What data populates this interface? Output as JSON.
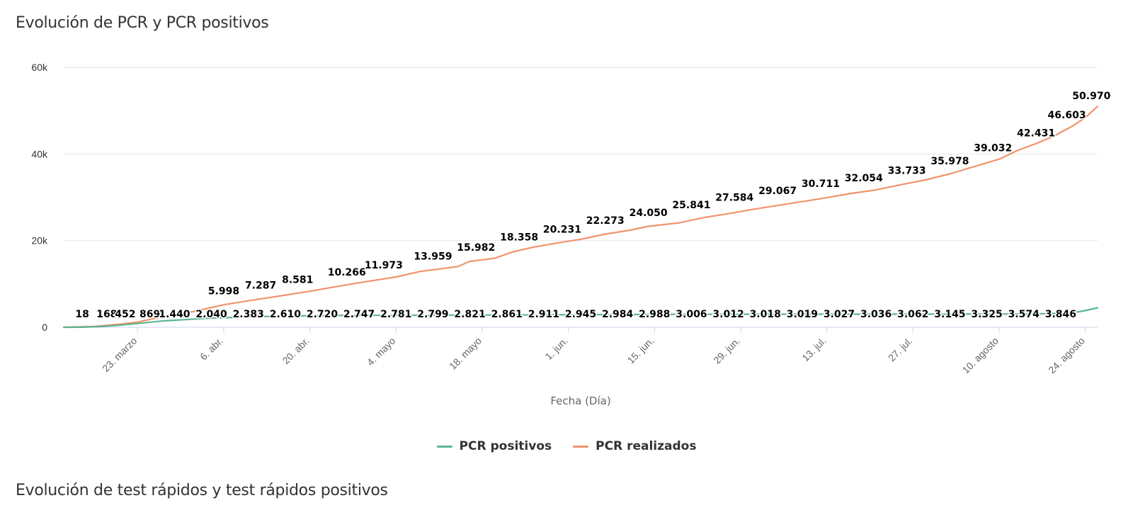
{
  "page": {
    "title": "Evolución de PCR y PCR positivos",
    "next_title": "Evolución de test rápidos y test rápidos positivos"
  },
  "chart_data": {
    "type": "line",
    "title": "Evolución de PCR y PCR positivos",
    "xlabel": "Fecha (Día)",
    "ylabel": "",
    "ylim": [
      0,
      60000
    ],
    "yticks": [
      {
        "value": 0,
        "label": "0"
      },
      {
        "value": 20000,
        "label": "20k"
      },
      {
        "value": 40000,
        "label": "40k"
      },
      {
        "value": 60000,
        "label": "60k"
      }
    ],
    "xlim": [
      0,
      168
    ],
    "xticks": [
      {
        "day": 12,
        "label": "23. marzo"
      },
      {
        "day": 26,
        "label": "6. abr."
      },
      {
        "day": 40,
        "label": "20. abr."
      },
      {
        "day": 54,
        "label": "4. mayo"
      },
      {
        "day": 68,
        "label": "18. mayo"
      },
      {
        "day": 82,
        "label": "1. jun."
      },
      {
        "day": 96,
        "label": "15. jun."
      },
      {
        "day": 110,
        "label": "29. jun."
      },
      {
        "day": 124,
        "label": "13. jul."
      },
      {
        "day": 138,
        "label": "27. jul."
      },
      {
        "day": 152,
        "label": "10. agosto"
      },
      {
        "day": 166,
        "label": "24. agosto"
      }
    ],
    "legend_position": "bottom-center",
    "series": [
      {
        "name": "PCR positivos",
        "color": "#5bb595",
        "points": [
          {
            "day": 0,
            "value": 0
          },
          {
            "day": 3,
            "value": 18
          },
          {
            "day": 6,
            "value": 168
          },
          {
            "day": 9,
            "value": 452
          },
          {
            "day": 12,
            "value": 869
          },
          {
            "day": 16,
            "value": 1440
          },
          {
            "day": 23,
            "value": 2040
          },
          {
            "day": 30,
            "value": 2383
          },
          {
            "day": 37,
            "value": 2610
          },
          {
            "day": 44,
            "value": 2720
          },
          {
            "day": 51,
            "value": 2747
          },
          {
            "day": 58,
            "value": 2781
          },
          {
            "day": 65,
            "value": 2799
          },
          {
            "day": 72,
            "value": 2821
          },
          {
            "day": 79,
            "value": 2861
          },
          {
            "day": 86,
            "value": 2911
          },
          {
            "day": 93,
            "value": 2945
          },
          {
            "day": 100,
            "value": 2984
          },
          {
            "day": 107,
            "value": 2988
          },
          {
            "day": 114,
            "value": 3006
          },
          {
            "day": 121,
            "value": 3012
          },
          {
            "day": 128,
            "value": 3018
          },
          {
            "day": 135,
            "value": 3019
          },
          {
            "day": 142,
            "value": 3027
          },
          {
            "day": 149,
            "value": 3036
          },
          {
            "day": 156,
            "value": 3062
          },
          {
            "day": 160,
            "value": 3145
          },
          {
            "day": 163,
            "value": 3325
          },
          {
            "day": 165,
            "value": 3574
          },
          {
            "day": 166,
            "value": 3846
          },
          {
            "day": 168,
            "value": 4500
          }
        ],
        "labels": [
          {
            "day": 3,
            "value": 18,
            "text": "18"
          },
          {
            "day": 7,
            "value": 168,
            "text": "168"
          },
          {
            "day": 10,
            "value": 452,
            "text": "452"
          },
          {
            "day": 14,
            "value": 869,
            "text": "869"
          },
          {
            "day": 18,
            "value": 1440,
            "text": "1.440"
          },
          {
            "day": 24,
            "value": 2040,
            "text": "2.040"
          },
          {
            "day": 30,
            "value": 2383,
            "text": "2.383"
          },
          {
            "day": 36,
            "value": 2610,
            "text": "2.610"
          },
          {
            "day": 42,
            "value": 2720,
            "text": "2.720"
          },
          {
            "day": 48,
            "value": 2747,
            "text": "2.747"
          },
          {
            "day": 54,
            "value": 2781,
            "text": "2.781"
          },
          {
            "day": 60,
            "value": 2799,
            "text": "2.799"
          },
          {
            "day": 66,
            "value": 2821,
            "text": "2.821"
          },
          {
            "day": 72,
            "value": 2861,
            "text": "2.861"
          },
          {
            "day": 78,
            "value": 2911,
            "text": "2.911"
          },
          {
            "day": 84,
            "value": 2945,
            "text": "2.945"
          },
          {
            "day": 90,
            "value": 2984,
            "text": "2.984"
          },
          {
            "day": 96,
            "value": 2988,
            "text": "2.988"
          },
          {
            "day": 102,
            "value": 3006,
            "text": "3.006"
          },
          {
            "day": 108,
            "value": 3012,
            "text": "3.012"
          },
          {
            "day": 114,
            "value": 3018,
            "text": "3.018"
          },
          {
            "day": 120,
            "value": 3019,
            "text": "3.019"
          },
          {
            "day": 126,
            "value": 3027,
            "text": "3.027"
          },
          {
            "day": 132,
            "value": 3036,
            "text": "3.036"
          },
          {
            "day": 138,
            "value": 3062,
            "text": "3.062"
          },
          {
            "day": 144,
            "value": 3145,
            "text": "3.145"
          },
          {
            "day": 150,
            "value": 3325,
            "text": "3.325"
          },
          {
            "day": 156,
            "value": 3574,
            "text": "3.574"
          },
          {
            "day": 162,
            "value": 3846,
            "text": "3.846"
          }
        ]
      },
      {
        "name": "PCR realizados",
        "color": "#f0946c",
        "points": [
          {
            "day": 0,
            "value": 0
          },
          {
            "day": 5,
            "value": 200
          },
          {
            "day": 9,
            "value": 700
          },
          {
            "day": 12,
            "value": 1200
          },
          {
            "day": 16,
            "value": 2400
          },
          {
            "day": 21,
            "value": 3600
          },
          {
            "day": 26,
            "value": 5200
          },
          {
            "day": 30,
            "value": 6100
          },
          {
            "day": 35,
            "value": 7200
          },
          {
            "day": 40,
            "value": 8300
          },
          {
            "day": 44,
            "value": 9300
          },
          {
            "day": 48,
            "value": 10266
          },
          {
            "day": 54,
            "value": 11600
          },
          {
            "day": 58,
            "value": 12900
          },
          {
            "day": 64,
            "value": 14000
          },
          {
            "day": 66,
            "value": 15200
          },
          {
            "day": 70,
            "value": 15900
          },
          {
            "day": 73,
            "value": 17400
          },
          {
            "day": 76,
            "value": 18400
          },
          {
            "day": 80,
            "value": 19400
          },
          {
            "day": 84,
            "value": 20300
          },
          {
            "day": 88,
            "value": 21500
          },
          {
            "day": 92,
            "value": 22400
          },
          {
            "day": 95,
            "value": 23300
          },
          {
            "day": 100,
            "value": 24100
          },
          {
            "day": 104,
            "value": 25300
          },
          {
            "day": 108,
            "value": 26200
          },
          {
            "day": 112,
            "value": 27200
          },
          {
            "day": 116,
            "value": 28100
          },
          {
            "day": 120,
            "value": 29000
          },
          {
            "day": 124,
            "value": 29900
          },
          {
            "day": 128,
            "value": 30900
          },
          {
            "day": 132,
            "value": 31700
          },
          {
            "day": 136,
            "value": 32900
          },
          {
            "day": 140,
            "value": 34000
          },
          {
            "day": 144,
            "value": 35400
          },
          {
            "day": 148,
            "value": 37100
          },
          {
            "day": 152,
            "value": 38800
          },
          {
            "day": 155,
            "value": 40800
          },
          {
            "day": 158,
            "value": 42400
          },
          {
            "day": 161,
            "value": 44200
          },
          {
            "day": 164,
            "value": 46500
          },
          {
            "day": 166,
            "value": 48400
          },
          {
            "day": 168,
            "value": 50970
          }
        ],
        "labels": [
          {
            "day": 26,
            "value": 5998,
            "text": "5.998"
          },
          {
            "day": 32,
            "value": 7287,
            "text": "7.287"
          },
          {
            "day": 38,
            "value": 8581,
            "text": "8.581"
          },
          {
            "day": 46,
            "value": 10266,
            "text": "10.266"
          },
          {
            "day": 52,
            "value": 11973,
            "text": "11.973"
          },
          {
            "day": 60,
            "value": 13959,
            "text": "13.959"
          },
          {
            "day": 67,
            "value": 15982,
            "text": "15.982"
          },
          {
            "day": 74,
            "value": 18358,
            "text": "18.358"
          },
          {
            "day": 81,
            "value": 20231,
            "text": "20.231"
          },
          {
            "day": 88,
            "value": 22273,
            "text": "22.273"
          },
          {
            "day": 95,
            "value": 24050,
            "text": "24.050"
          },
          {
            "day": 102,
            "value": 25841,
            "text": "25.841"
          },
          {
            "day": 109,
            "value": 27584,
            "text": "27.584"
          },
          {
            "day": 116,
            "value": 29067,
            "text": "29.067"
          },
          {
            "day": 123,
            "value": 30711,
            "text": "30.711"
          },
          {
            "day": 130,
            "value": 32054,
            "text": "32.054"
          },
          {
            "day": 137,
            "value": 33733,
            "text": "33.733"
          },
          {
            "day": 144,
            "value": 35978,
            "text": "35.978"
          },
          {
            "day": 151,
            "value": 39032,
            "text": "39.032"
          },
          {
            "day": 158,
            "value": 42431,
            "text": "42.431"
          },
          {
            "day": 163,
            "value": 46603,
            "text": "46.603"
          },
          {
            "day": 167,
            "value": 50970,
            "text": "50.970"
          }
        ]
      }
    ]
  }
}
